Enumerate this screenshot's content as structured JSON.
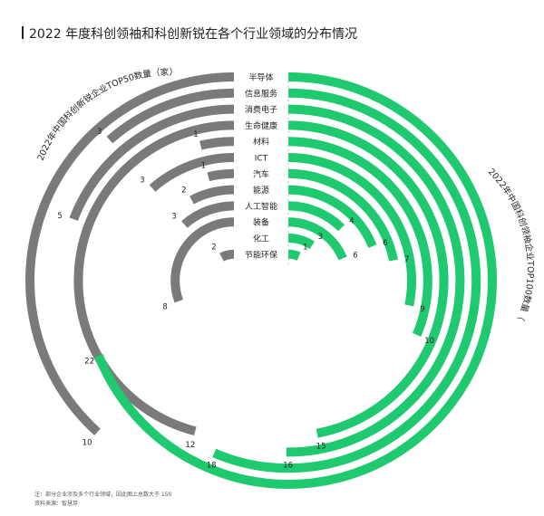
{
  "title": "2022 年度科创领袖和科创新锐在各个行业领域的分布情况",
  "note": {
    "line1": "注：部分企业涉及多个行业领域，因此图上总数大于 150",
    "line2": "资料来源：智慧芽"
  },
  "chart_data": {
    "type": "bar",
    "title": "2022 年度科创领袖和科创新锐在各个行业领域的分布情况",
    "categories": [
      "半导体",
      "信息服务",
      "消费电子",
      "生命健康",
      "材料",
      "ICT",
      "汽车",
      "能源",
      "人工智能",
      "装备",
      "化工",
      "节能环保"
    ],
    "series": [
      {
        "name": "2022年中国科创新锐企业TOP50数量（家）",
        "side": "left",
        "color": "#7a7a7a",
        "values": [
          10,
          3,
          5,
          12,
          1,
          3,
          1,
          2,
          3,
          8,
          null,
          2
        ],
        "value_labels": [
          "10",
          "3",
          "5",
          "12",
          "1",
          "3",
          "1",
          "2",
          "3",
          "8",
          "",
          "2"
        ]
      },
      {
        "name": "2022年中国科创领袖企业TOP100数量（家）",
        "side": "right",
        "color": "#1ec96f",
        "values": [
          22,
          18,
          16,
          15,
          10,
          9,
          7,
          6,
          4,
          6,
          3,
          1
        ],
        "value_labels": [
          "22",
          "18",
          "16",
          "15",
          "10",
          "9",
          "7",
          "6",
          "4",
          "6",
          "3",
          "1"
        ]
      }
    ]
  }
}
